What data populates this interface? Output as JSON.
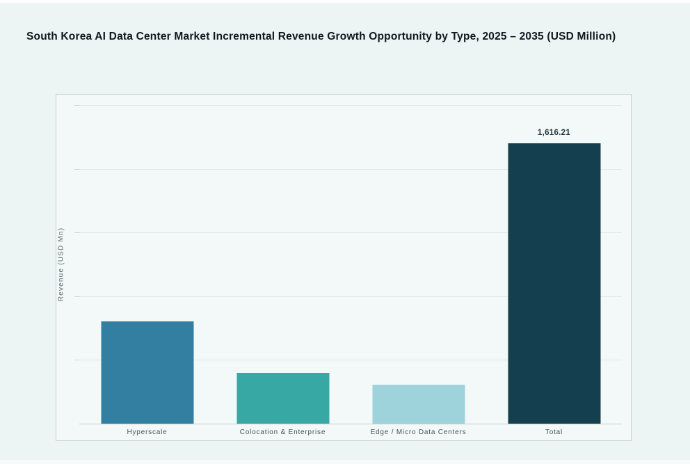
{
  "theme": {
    "page_background": "#ecf5f4",
    "panel_background": "#f3f8f8",
    "panel_border": "#c6d0cf",
    "gridline_color": "#dde8e7",
    "axis_line_color": "#c4d0cf",
    "title_color": "#10181d",
    "label_color": "#45545a"
  },
  "chart_data": {
    "type": "bar",
    "title": "South Korea AI Data Center Market Incremental Revenue Growth Opportunity by Type, 2025 – 2035 (USD Million)",
    "categories": [
      "Hyperscale",
      "Colocation & Enterprise",
      "Edge / Micro Data Centers",
      "Total"
    ],
    "values": [
      590,
      292,
      224,
      1616.21
    ],
    "value_labels": [
      "",
      "",
      "",
      "1,616.21"
    ],
    "series_colors": [
      "#337fa2",
      "#38a8a4",
      "#9fd3db",
      "#143f4f"
    ],
    "xlabel": "",
    "ylabel": "Revenue (USD Mn)",
    "ylim": [
      0,
      1837
    ],
    "gridline_count": 6,
    "grid": true,
    "legend": false,
    "y_tick_labels_visible": false
  }
}
